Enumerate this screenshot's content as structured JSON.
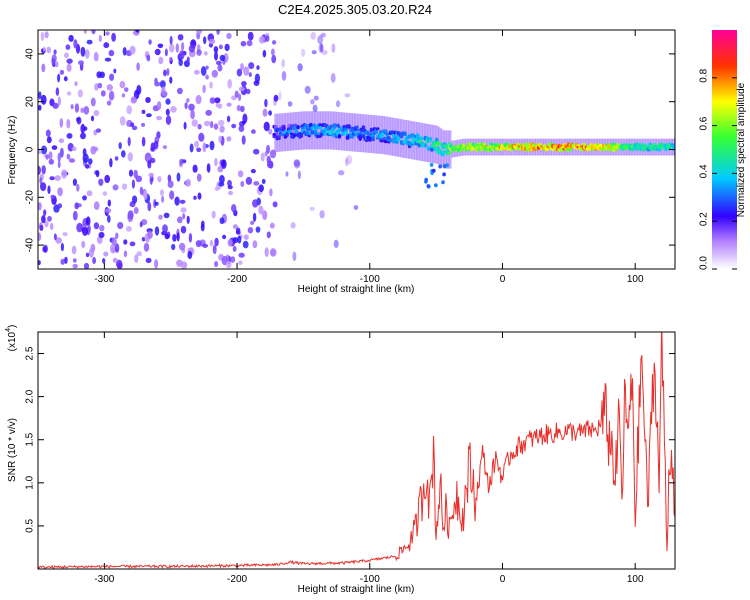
{
  "title": "C2E4.2025.305.03.20.R24",
  "chart_data": [
    {
      "type": "heatmap",
      "xlabel": "Height of straight line (km)",
      "ylabel": "Frequency (Hz)",
      "xlim": [
        -350,
        130
      ],
      "ylim": [
        -50,
        50
      ],
      "x_ticks": [
        -300,
        -200,
        -100,
        0,
        100
      ],
      "y_ticks": [
        -40,
        -20,
        0,
        20,
        40
      ],
      "colorbar": {
        "label": "Normalized spectral amplitude",
        "range": [
          0,
          1
        ],
        "ticks": [
          "0.0",
          "0.2",
          "0.4",
          "0.6",
          "0.8"
        ]
      },
      "ridge": {
        "x": [
          -170,
          -150,
          -130,
          -110,
          -90,
          -70,
          -60,
          -50,
          -45,
          -40,
          -30,
          -20,
          0,
          20,
          40,
          60,
          80,
          100,
          120,
          130
        ],
        "y": [
          7,
          8,
          8,
          7,
          6,
          4,
          3,
          2,
          0,
          0,
          1,
          1,
          1,
          1,
          1,
          1,
          1,
          1,
          1,
          1
        ],
        "amplitude": [
          0.35,
          0.4,
          0.45,
          0.4,
          0.4,
          0.45,
          0.5,
          0.55,
          0.6,
          0.65,
          0.7,
          0.75,
          0.8,
          0.85,
          0.9,
          0.9,
          0.8,
          0.55,
          0.6,
          0.5
        ]
      },
      "grid": false
    },
    {
      "type": "line",
      "xlabel": "Height of straight line (km)",
      "ylabel": "SNR (10 * v/v)",
      "y_multiplier": "(x10",
      "y_multiplier_exp": "4",
      "xlim": [
        -350,
        130
      ],
      "ylim": [
        0,
        2.75
      ],
      "x_ticks": [
        -300,
        -200,
        -100,
        0,
        100
      ],
      "y_ticks": [
        "0.5",
        "1.0",
        "1.5",
        "2.0",
        "2.5"
      ],
      "color": "#e8302b",
      "series": [
        {
          "x": [
            -350,
            -300,
            -250,
            -200,
            -170,
            -160,
            -150,
            -120,
            -100,
            -80,
            -70,
            -65,
            -60,
            -57,
            -55,
            -52,
            -50,
            -47,
            -45,
            -42,
            -40,
            -35,
            -30,
            -25,
            -20,
            -15,
            -10,
            -5,
            0,
            5,
            10,
            20,
            30,
            40,
            50,
            60,
            65,
            70,
            75,
            78,
            80,
            83,
            85,
            88,
            90,
            92,
            95,
            98,
            100,
            103,
            105,
            108,
            110,
            113,
            115,
            118,
            120,
            122,
            124,
            126,
            128,
            130
          ],
          "y": [
            0.02,
            0.03,
            0.03,
            0.04,
            0.05,
            0.08,
            0.06,
            0.07,
            0.1,
            0.15,
            0.3,
            0.5,
            0.9,
            1.2,
            0.7,
            1.4,
            0.4,
            1.0,
            0.5,
            0.7,
            0.45,
            0.9,
            0.6,
            1.2,
            0.8,
            1.35,
            0.95,
            1.3,
            1.05,
            1.3,
            1.4,
            1.5,
            1.55,
            1.58,
            1.6,
            1.58,
            1.62,
            1.6,
            1.7,
            1.85,
            1.5,
            1.4,
            1.0,
            1.8,
            0.8,
            1.9,
            1.6,
            2.2,
            0.6,
            1.8,
            2.5,
            1.2,
            0.8,
            2.1,
            2.3,
            1.0,
            2.7,
            1.5,
            0.2,
            1.4,
            1.3,
            0.6
          ]
        }
      ],
      "grid": false
    }
  ]
}
